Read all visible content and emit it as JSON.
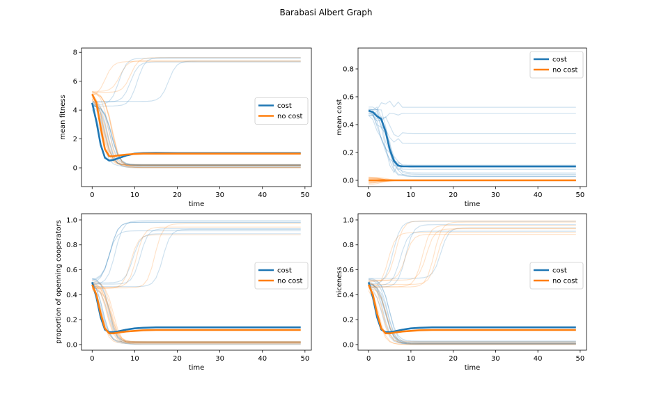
{
  "figure": {
    "title": "Barabasi Albert Graph",
    "colors": {
      "cost": "#1f77b4",
      "no_cost": "#ff7f0e",
      "axis": "#000000",
      "legend_border": "#cccccc"
    }
  },
  "chart_data": [
    {
      "type": "line",
      "id": "mean-fitness",
      "xlabel": "time",
      "ylabel": "mean fitness",
      "xlim": [
        -2.5,
        51.5
      ],
      "ylim": [
        -1.3,
        8.3
      ],
      "xticks": [
        0,
        10,
        20,
        30,
        40,
        50
      ],
      "yticks": [
        0,
        2,
        4,
        6,
        8
      ],
      "legend": {
        "position": "center-right",
        "entries": [
          "cost",
          "no cost"
        ]
      },
      "series": [
        {
          "name": "cost",
          "x": [
            0,
            1,
            2,
            3,
            4,
            5,
            6,
            8,
            10,
            12,
            15,
            20,
            30,
            40,
            49
          ],
          "values": [
            4.5,
            3.2,
            1.6,
            0.7,
            0.5,
            0.55,
            0.65,
            0.85,
            0.98,
            1.02,
            1.03,
            1.02,
            1.02,
            1.02,
            1.02
          ]
        },
        {
          "name": "no cost",
          "x": [
            0,
            1,
            2,
            3,
            4,
            5,
            6,
            8,
            10,
            12,
            15,
            20,
            30,
            40,
            49
          ],
          "values": [
            5.1,
            4.5,
            2.8,
            1.3,
            0.8,
            0.8,
            0.85,
            0.92,
            0.96,
            0.98,
            0.98,
            0.98,
            0.98,
            0.98,
            0.98
          ]
        }
      ]
    },
    {
      "type": "line",
      "id": "mean-cost",
      "xlabel": "time",
      "ylabel": "mean cost",
      "xlim": [
        -2.5,
        51.5
      ],
      "ylim": [
        -0.045,
        0.95
      ],
      "xticks": [
        0,
        10,
        20,
        30,
        40,
        50
      ],
      "yticks": [
        0.0,
        0.2,
        0.4,
        0.6,
        0.8
      ],
      "legend": {
        "position": "top-right",
        "entries": [
          "cost",
          "no cost"
        ]
      },
      "series": [
        {
          "name": "cost",
          "x": [
            0,
            1,
            2,
            3,
            4,
            5,
            6,
            7,
            8,
            10,
            12,
            15,
            20,
            30,
            40,
            49
          ],
          "values": [
            0.5,
            0.49,
            0.46,
            0.44,
            0.35,
            0.22,
            0.14,
            0.105,
            0.1,
            0.1,
            0.1,
            0.1,
            0.1,
            0.1,
            0.1,
            0.1
          ]
        },
        {
          "name": "no cost",
          "x": [
            0,
            10,
            20,
            30,
            40,
            49
          ],
          "values": [
            0,
            0,
            0,
            0,
            0,
            0
          ]
        }
      ]
    },
    {
      "type": "line",
      "id": "opening-cooperators",
      "xlabel": "time",
      "ylabel": "proportion of openning cooperators",
      "xlim": [
        -2.5,
        51.5
      ],
      "ylim": [
        -0.045,
        1.05
      ],
      "xticks": [
        0,
        10,
        20,
        30,
        40,
        50
      ],
      "yticks": [
        0.0,
        0.2,
        0.4,
        0.6,
        0.8,
        1.0
      ],
      "legend": {
        "position": "center-right",
        "entries": [
          "cost",
          "no cost"
        ]
      },
      "series": [
        {
          "name": "cost",
          "x": [
            0,
            1,
            2,
            3,
            4,
            5,
            6,
            8,
            10,
            12,
            15,
            20,
            30,
            40,
            49
          ],
          "values": [
            0.5,
            0.38,
            0.22,
            0.12,
            0.1,
            0.1,
            0.105,
            0.12,
            0.13,
            0.135,
            0.138,
            0.138,
            0.138,
            0.138,
            0.138
          ]
        },
        {
          "name": "no cost",
          "x": [
            0,
            1,
            2,
            3,
            4,
            5,
            6,
            8,
            10,
            12,
            15,
            20,
            30,
            40,
            49
          ],
          "values": [
            0.48,
            0.4,
            0.25,
            0.13,
            0.09,
            0.09,
            0.095,
            0.105,
            0.11,
            0.115,
            0.117,
            0.117,
            0.117,
            0.117,
            0.117
          ]
        }
      ]
    },
    {
      "type": "line",
      "id": "niceness",
      "xlabel": "time",
      "ylabel": "niceness",
      "xlim": [
        -2.5,
        51.5
      ],
      "ylim": [
        -0.045,
        1.05
      ],
      "xticks": [
        0,
        10,
        20,
        30,
        40,
        50
      ],
      "yticks": [
        0.0,
        0.2,
        0.4,
        0.6,
        0.8,
        1.0
      ],
      "legend": {
        "position": "center-right",
        "entries": [
          "cost",
          "no cost"
        ]
      },
      "series": [
        {
          "name": "cost",
          "x": [
            0,
            1,
            2,
            3,
            4,
            5,
            6,
            8,
            10,
            12,
            15,
            20,
            30,
            40,
            49
          ],
          "values": [
            0.5,
            0.38,
            0.22,
            0.12,
            0.1,
            0.1,
            0.105,
            0.12,
            0.13,
            0.135,
            0.138,
            0.138,
            0.138,
            0.138,
            0.138
          ]
        },
        {
          "name": "no cost",
          "x": [
            0,
            1,
            2,
            3,
            4,
            5,
            6,
            8,
            10,
            12,
            15,
            20,
            30,
            40,
            49
          ],
          "values": [
            0.48,
            0.4,
            0.25,
            0.13,
            0.09,
            0.09,
            0.095,
            0.105,
            0.11,
            0.115,
            0.117,
            0.117,
            0.117,
            0.117,
            0.117
          ]
        }
      ]
    }
  ]
}
